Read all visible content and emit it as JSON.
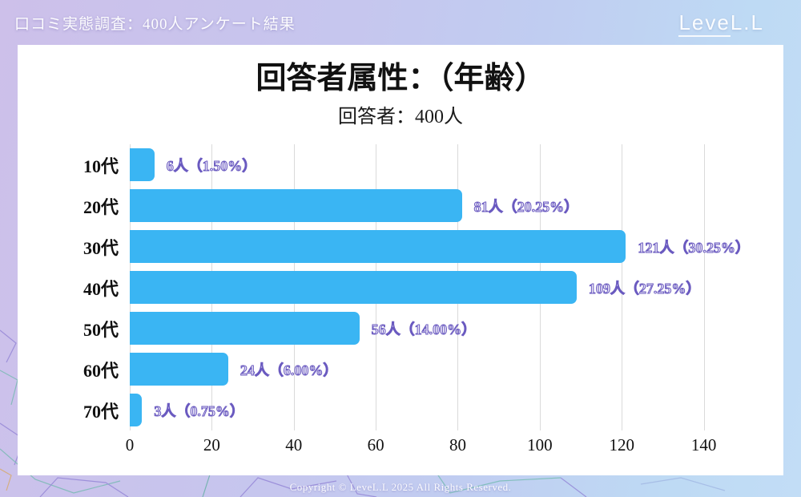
{
  "page": {
    "header_title": "口コミ実態調査：400人アンケート結果",
    "logo_part1": "Leve",
    "logo_part2": "L.L",
    "footer": "Copyright © LeveL.L 2025 All Rights Reserved."
  },
  "chart_data": {
    "type": "bar",
    "orientation": "horizontal",
    "title": "回答者属性：（年齢）",
    "subtitle": "回答者：400人",
    "total_respondents": 400,
    "categories": [
      "10代",
      "20代",
      "30代",
      "40代",
      "50代",
      "60代",
      "70代"
    ],
    "values": [
      6,
      81,
      121,
      109,
      56,
      24,
      3
    ],
    "percentages": [
      1.5,
      20.25,
      30.25,
      27.25,
      14.0,
      6.0,
      0.75
    ],
    "value_labels": [
      "6人（1.50%）",
      "81人（20.25%）",
      "121人（30.25%）",
      "109人（27.25%）",
      "56人（14.00%）",
      "24人（6.00%）",
      "3人（0.75%）"
    ],
    "x_ticks": [
      0,
      20,
      40,
      60,
      80,
      100,
      120,
      140
    ],
    "xlim": [
      0,
      152
    ],
    "grid": true,
    "legend": false,
    "bar_color": "#3ab5f3",
    "grid_color": "#dadada",
    "value_label_fill": "#e9e5f6",
    "value_label_stroke": "#6a5ac0"
  }
}
